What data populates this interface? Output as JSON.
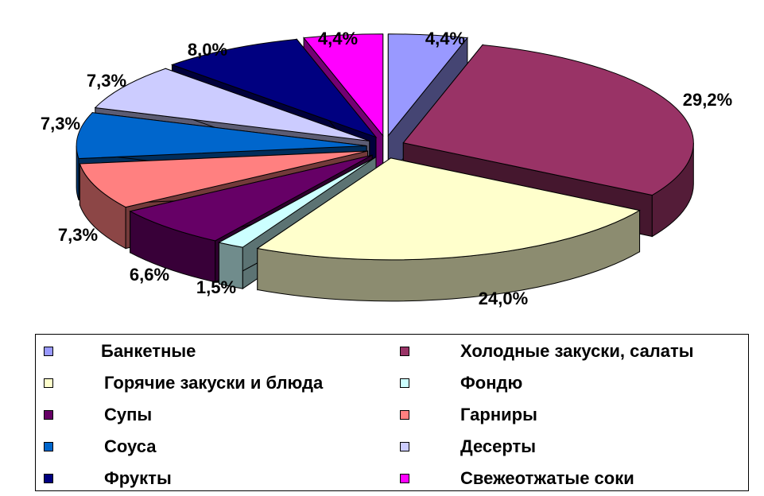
{
  "chart_data": {
    "type": "pie",
    "title": "",
    "categories": [
      "Банкетные",
      "Холодные закуски, салаты",
      "Горячие закуски и блюда",
      "Фондю",
      "Супы",
      "Гарниры",
      "Соуса",
      "Десерты",
      "Фрукты",
      "Свежеотжатые соки"
    ],
    "values": [
      4.4,
      29.2,
      24.0,
      1.5,
      6.6,
      7.3,
      7.3,
      7.3,
      8.0,
      4.4
    ],
    "labels": [
      "4,4%",
      "29,2%",
      "24,0%",
      "1,5%",
      "6,6%",
      "7,3%",
      "7,3%",
      "7,3%",
      "8,0%",
      "4,4%"
    ],
    "colors": [
      "#9999ff",
      "#993366",
      "#ffffcc",
      "#ccffff",
      "#660066",
      "#ff8080",
      "#0066cc",
      "#ccccff",
      "#000080",
      "#ff00ff"
    ],
    "legend_position": "bottom",
    "style": "3d-exploded"
  }
}
